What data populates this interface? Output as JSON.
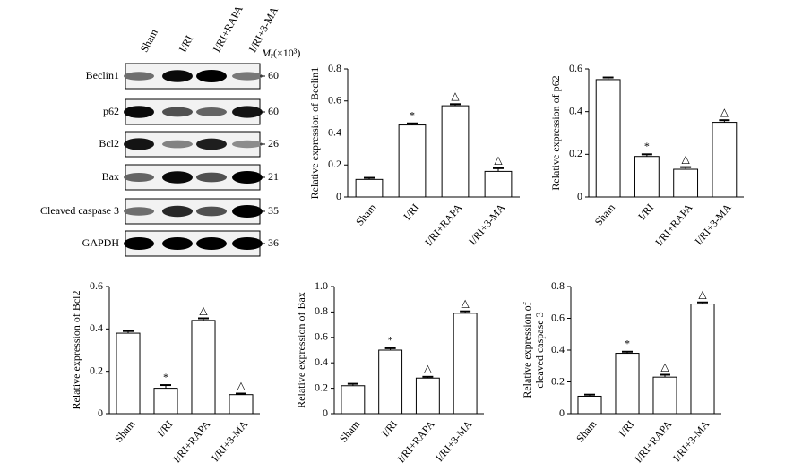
{
  "blot": {
    "lanes": [
      "Sham",
      "I/RI",
      "I/RI+RAPA",
      "I/RI+3-MA"
    ],
    "mr_symbol": "M",
    "mr_sub": "r",
    "mr_unit": "(×10³)",
    "proteins": [
      {
        "name": "Beclin1",
        "mr": 60
      },
      {
        "name": "p62",
        "mr": 60
      },
      {
        "name": "Bcl2",
        "mr": 26
      },
      {
        "name": "Bax",
        "mr": 21
      },
      {
        "name": "Cleaved caspase 3",
        "mr": 35
      },
      {
        "name": "GAPDH",
        "mr": 36
      }
    ]
  },
  "chart_data": [
    {
      "type": "bar",
      "ylabel": "Relative expression of Beclin1",
      "categories": [
        "Sham",
        "I/RI",
        "I/RI+RAPA",
        "I/RI+3-MA"
      ],
      "values": [
        0.11,
        0.45,
        0.57,
        0.16
      ],
      "errors": [
        0.01,
        0.01,
        0.01,
        0.02
      ],
      "marks": [
        null,
        "*",
        "△",
        "△"
      ],
      "ylim": [
        0,
        0.8
      ],
      "yticks": [
        0,
        0.2,
        0.4,
        0.6,
        0.8
      ],
      "color": "#ffffff"
    },
    {
      "type": "bar",
      "ylabel": "Relative expression of p62",
      "categories": [
        "Sham",
        "I/RI",
        "I/RI+RAPA",
        "I/RI+3-MA"
      ],
      "values": [
        0.55,
        0.19,
        0.13,
        0.35
      ],
      "errors": [
        0.01,
        0.01,
        0.01,
        0.01
      ],
      "marks": [
        null,
        "*",
        "△",
        "△"
      ],
      "ylim": [
        0,
        0.6
      ],
      "yticks": [
        0,
        0.2,
        0.4,
        0.6
      ],
      "color": "#ffffff"
    },
    {
      "type": "bar",
      "ylabel": "Relative expression of Bcl2",
      "categories": [
        "Sham",
        "I/RI",
        "I/RI+RAPA",
        "I/RI+3-MA"
      ],
      "values": [
        0.38,
        0.12,
        0.44,
        0.09
      ],
      "errors": [
        0.01,
        0.015,
        0.01,
        0.005
      ],
      "marks": [
        null,
        "*",
        "△",
        "△"
      ],
      "ylim": [
        0,
        0.6
      ],
      "yticks": [
        0,
        0.2,
        0.4,
        0.6
      ],
      "color": "#ffffff"
    },
    {
      "type": "bar",
      "ylabel": "Relative expression of Bax",
      "categories": [
        "Sham",
        "I/RI",
        "I/RI+RAPA",
        "I/RI+3-MA"
      ],
      "values": [
        0.22,
        0.5,
        0.28,
        0.79
      ],
      "errors": [
        0.015,
        0.015,
        0.01,
        0.015
      ],
      "marks": [
        null,
        "*",
        "△",
        "△"
      ],
      "ylim": [
        0,
        1.0
      ],
      "yticks": [
        0,
        0.2,
        0.4,
        0.6,
        0.8,
        {
          "value": 1.0,
          "label": "1.0"
        }
      ],
      "color": "#ffffff"
    },
    {
      "type": "bar",
      "ylabel": [
        "Relative expression of",
        "cleaved caspase 3"
      ],
      "categories": [
        "Sham",
        "I/RI",
        "I/RI+RAPA",
        "I/RI+3-MA"
      ],
      "values": [
        0.11,
        0.38,
        0.23,
        0.69
      ],
      "errors": [
        0.01,
        0.01,
        0.015,
        0.01
      ],
      "marks": [
        null,
        "*",
        "△",
        "△"
      ],
      "ylim": [
        0,
        0.8
      ],
      "yticks": [
        0,
        0.2,
        0.4,
        0.6,
        0.8
      ],
      "color": "#ffffff"
    }
  ]
}
